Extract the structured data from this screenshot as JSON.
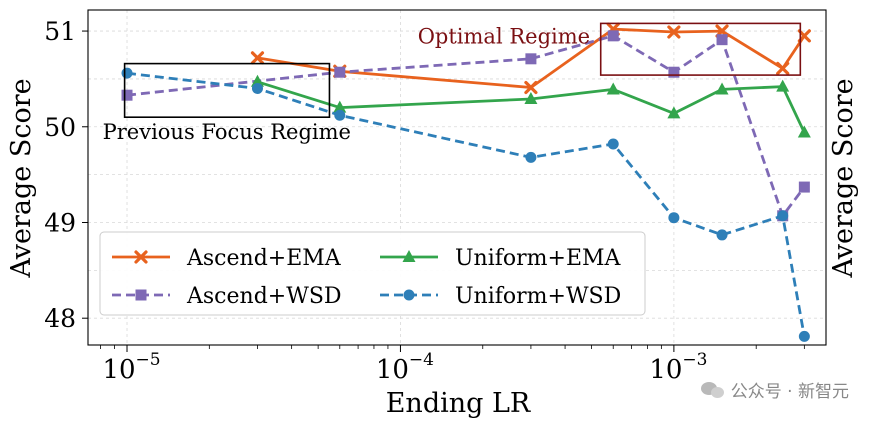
{
  "chart_data": {
    "type": "line",
    "xscale": "log",
    "xlim": [
      7.2e-06,
      0.0036
    ],
    "ylim": [
      47.72,
      51.22
    ],
    "xlabel": "Ending LR",
    "ylabel": "Average Score",
    "ylabel_right": "Average Score",
    "yticks": [
      48,
      49,
      50,
      51
    ],
    "xticks": [
      {
        "value": 1e-05,
        "base": "10",
        "exp": "−5"
      },
      {
        "value": 0.0001,
        "base": "10",
        "exp": "−4"
      },
      {
        "value": 0.001,
        "base": "10",
        "exp": "−3"
      }
    ],
    "grid": true,
    "legend_position": "lower-left",
    "series": [
      {
        "name": "Ascend+EMA",
        "color": "#E8621E",
        "marker": "x-marker",
        "dashed": false,
        "points": [
          [
            3e-05,
            50.72
          ],
          [
            6e-05,
            50.58
          ],
          [
            0.0003,
            50.41
          ],
          [
            0.0006,
            51.02
          ],
          [
            0.001,
            50.99
          ],
          [
            0.0015,
            51.0
          ],
          [
            0.0025,
            50.61
          ],
          [
            0.003,
            50.95
          ]
        ]
      },
      {
        "name": "Ascend+WSD",
        "color": "#7E69B5",
        "marker": "square-marker",
        "dashed": true,
        "points": [
          [
            1e-05,
            50.33
          ],
          [
            6e-05,
            50.57
          ],
          [
            0.0003,
            50.71
          ],
          [
            0.0006,
            50.95
          ],
          [
            0.001,
            50.57
          ],
          [
            0.0015,
            50.91
          ],
          [
            0.0025,
            49.07
          ],
          [
            0.003,
            49.37
          ]
        ]
      },
      {
        "name": "Uniform+EMA",
        "color": "#33A54C",
        "marker": "triangle-marker",
        "dashed": false,
        "points": [
          [
            3e-05,
            50.47
          ],
          [
            6e-05,
            50.2
          ],
          [
            0.0003,
            50.29
          ],
          [
            0.0006,
            50.39
          ],
          [
            0.001,
            50.14
          ],
          [
            0.0015,
            50.39
          ],
          [
            0.0025,
            50.42
          ],
          [
            0.003,
            49.94
          ]
        ]
      },
      {
        "name": "Uniform+WSD",
        "color": "#2E7FB8",
        "marker": "circle-marker",
        "dashed": true,
        "points": [
          [
            1e-05,
            50.56
          ],
          [
            3e-05,
            50.4
          ],
          [
            6e-05,
            50.12
          ],
          [
            0.0003,
            49.68
          ],
          [
            0.0006,
            49.82
          ],
          [
            0.001,
            49.05
          ],
          [
            0.0015,
            48.87
          ],
          [
            0.0025,
            49.07
          ],
          [
            0.003,
            47.81
          ]
        ]
      }
    ],
    "annotations": [
      {
        "text": "Previous Focus Regime",
        "color": "#000000",
        "box_x": [
          9.8e-06,
          5.5e-05
        ],
        "box_y": [
          50.1,
          50.66
        ]
      },
      {
        "text": "Optimal Regime",
        "color": "#7A0F12",
        "box_x": [
          0.00054,
          0.0029
        ],
        "box_y": [
          50.54,
          51.08
        ]
      }
    ]
  },
  "watermark": {
    "text": "公众号 · 新智元"
  }
}
